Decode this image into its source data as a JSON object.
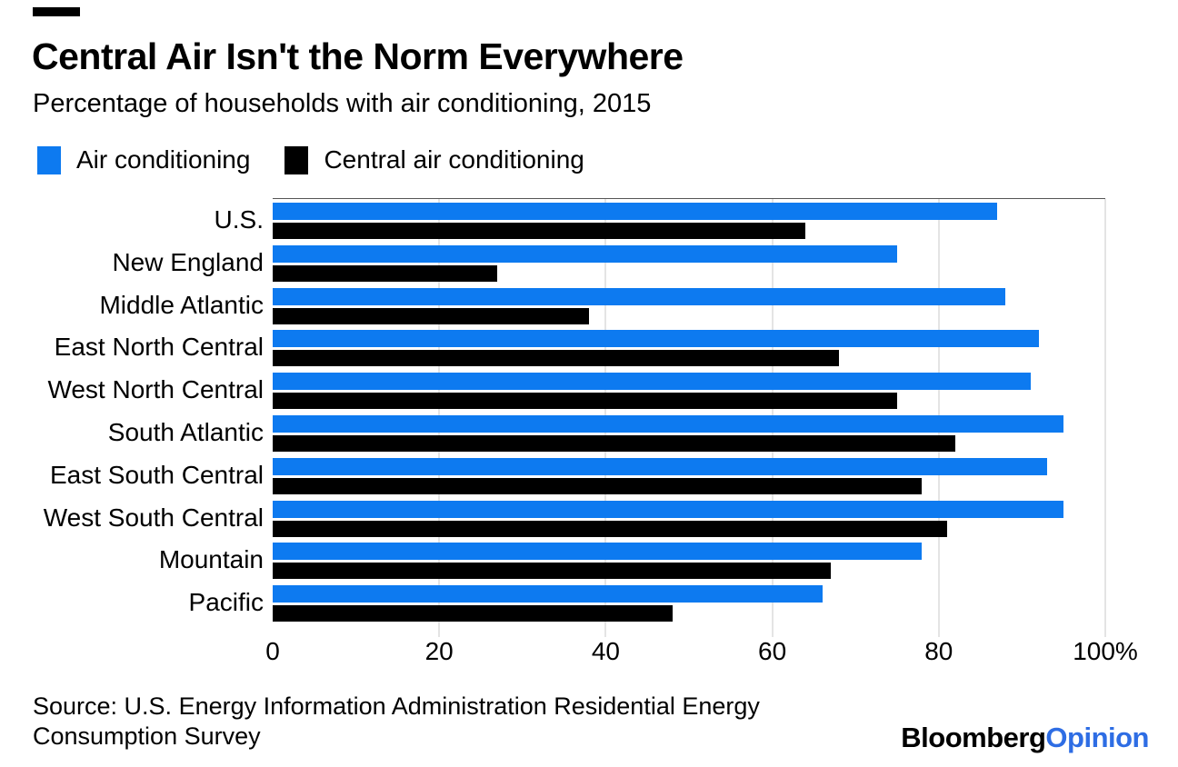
{
  "header": {
    "title": "Central Air Isn't the Norm Everywhere",
    "subtitle": "Percentage of households with air conditioning, 2015"
  },
  "chart_data": {
    "type": "bar",
    "orientation": "horizontal",
    "title": "Central Air Isn't the Norm Everywhere",
    "subtitle": "Percentage of households with air conditioning, 2015",
    "categories": [
      "U.S.",
      "New England",
      "Middle Atlantic",
      "East North Central",
      "West North Central",
      "South Atlantic",
      "East South Central",
      "West South Central",
      "Mountain",
      "Pacific"
    ],
    "series": [
      {
        "name": "Air conditioning",
        "color": "#0d7af0",
        "values": [
          87,
          75,
          88,
          92,
          91,
          95,
          93,
          95,
          78,
          66
        ]
      },
      {
        "name": "Central air conditioning",
        "color": "#000000",
        "values": [
          64,
          27,
          38,
          68,
          75,
          82,
          78,
          81,
          67,
          48
        ]
      }
    ],
    "xlim": [
      0,
      100
    ],
    "xticks": [
      {
        "value": 0,
        "label": "0"
      },
      {
        "value": 20,
        "label": "20"
      },
      {
        "value": 40,
        "label": "40"
      },
      {
        "value": 60,
        "label": "60"
      },
      {
        "value": 80,
        "label": "80"
      },
      {
        "value": 100,
        "label": "100%"
      }
    ],
    "grid": "vertical",
    "legend_position": "top"
  },
  "footer": {
    "source_lines": [
      "Source: U.S. Energy Information Administration Residential Energy",
      "Consumption Survey"
    ],
    "logo": {
      "black_text": "Bloomberg",
      "blue_text": "Opinion",
      "blue_color": "#2e6de4"
    }
  }
}
